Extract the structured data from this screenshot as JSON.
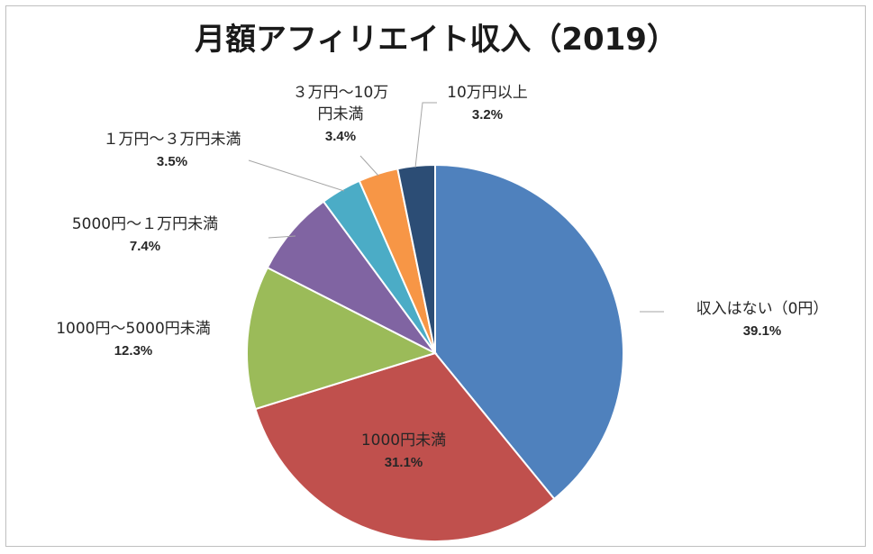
{
  "chart_data": {
    "type": "pie",
    "title": "月額アフィリエイト収入（2019）",
    "start_angle_deg": 0,
    "direction": "clockwise",
    "slices": [
      {
        "label": "収入はない（0円）",
        "pct_label": "39.1%",
        "value": 39.1,
        "color": "#4f81bd"
      },
      {
        "label": "1000円未満",
        "pct_label": "31.1%",
        "value": 31.1,
        "color": "#c0504d"
      },
      {
        "label": "1000円～5000円未満",
        "pct_label": "12.3%",
        "value": 12.3,
        "color": "#9bbb59"
      },
      {
        "label": "5000円～１万円未満",
        "pct_label": "7.4%",
        "value": 7.4,
        "color": "#8064a2"
      },
      {
        "label": "１万円～３万円未満",
        "pct_label": "3.5%",
        "value": 3.5,
        "color": "#4bacc6"
      },
      {
        "label": "３万円～10万円未満",
        "label_lines": [
          "３万円～10万",
          "円未満"
        ],
        "pct_label": "3.4%",
        "value": 3.4,
        "color": "#f79646"
      },
      {
        "label": "10万円以上",
        "pct_label": "3.2%",
        "value": 3.2,
        "color": "#2c4d75"
      }
    ],
    "legend": "none"
  }
}
